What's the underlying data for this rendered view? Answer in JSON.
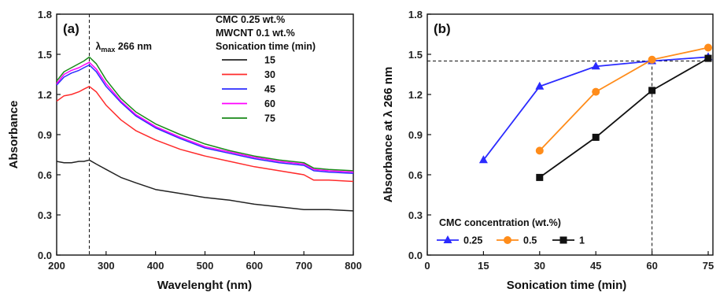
{
  "chart_data": [
    {
      "panel": "(a)",
      "type": "line",
      "xlabel": "Wavelenght (nm)",
      "ylabel": "Absorbance",
      "xlim": [
        200,
        800
      ],
      "ylim": [
        0.0,
        1.8
      ],
      "xticks": [
        "200",
        "300",
        "400",
        "500",
        "600",
        "700",
        "800"
      ],
      "yticks": [
        "0.0",
        "0.3",
        "0.6",
        "0.9",
        "1.2",
        "1.5",
        "1.8"
      ],
      "annotation": {
        "text_prefix": "λ",
        "text_sub": "max",
        "text_suffix": " 266 nm",
        "x": 266
      },
      "legend": {
        "title_lines": [
          "CMC 0.25 wt.%",
          "MWCNT 0.1 wt.%",
          "Sonication time (min)"
        ],
        "position": "top-right"
      },
      "x": [
        200,
        215,
        230,
        245,
        255,
        266,
        280,
        300,
        330,
        360,
        400,
        450,
        500,
        550,
        600,
        650,
        700,
        720,
        750,
        800
      ],
      "series": [
        {
          "name": "15",
          "color": "#222222",
          "values": [
            0.7,
            0.69,
            0.69,
            0.7,
            0.7,
            0.71,
            0.68,
            0.64,
            0.58,
            0.54,
            0.49,
            0.46,
            0.43,
            0.41,
            0.38,
            0.36,
            0.34,
            0.34,
            0.34,
            0.33
          ]
        },
        {
          "name": "30",
          "color": "#ff2b2b",
          "values": [
            1.15,
            1.19,
            1.2,
            1.22,
            1.24,
            1.26,
            1.22,
            1.12,
            1.01,
            0.93,
            0.86,
            0.79,
            0.74,
            0.7,
            0.66,
            0.63,
            0.6,
            0.56,
            0.56,
            0.55
          ]
        },
        {
          "name": "45",
          "color": "#2b2bff",
          "values": [
            1.27,
            1.33,
            1.36,
            1.38,
            1.4,
            1.42,
            1.37,
            1.26,
            1.14,
            1.04,
            0.95,
            0.87,
            0.8,
            0.76,
            0.72,
            0.69,
            0.67,
            0.63,
            0.62,
            0.61
          ]
        },
        {
          "name": "60",
          "color": "#ff00ff",
          "values": [
            1.28,
            1.35,
            1.38,
            1.4,
            1.42,
            1.44,
            1.39,
            1.28,
            1.15,
            1.05,
            0.96,
            0.88,
            0.81,
            0.77,
            0.73,
            0.7,
            0.68,
            0.64,
            0.63,
            0.62
          ]
        },
        {
          "name": "75",
          "color": "#1a8a1a",
          "values": [
            1.3,
            1.37,
            1.4,
            1.43,
            1.45,
            1.48,
            1.43,
            1.31,
            1.17,
            1.07,
            0.98,
            0.9,
            0.83,
            0.78,
            0.74,
            0.71,
            0.69,
            0.65,
            0.64,
            0.63
          ]
        }
      ]
    },
    {
      "panel": "(b)",
      "type": "line",
      "xlabel": "Sonication time (min)",
      "ylabel_prefix": "Absorbance at λ 266 nm",
      "xlim": [
        0,
        75
      ],
      "ylim": [
        0.0,
        1.8
      ],
      "xticks": [
        "0",
        "15",
        "30",
        "45",
        "60",
        "75"
      ],
      "yticks": [
        "0.0",
        "0.3",
        "0.6",
        "0.9",
        "1.2",
        "1.5",
        "1.8"
      ],
      "reference_lines": {
        "y": 1.45,
        "x": 60
      },
      "legend": {
        "title": "CMC concentration (wt.%)",
        "position": "bottom-left"
      },
      "series": [
        {
          "name": "0.25",
          "color": "#2b2bff",
          "marker": "triangle",
          "x": [
            15,
            30,
            45,
            60,
            75
          ],
          "values": [
            0.71,
            1.26,
            1.41,
            1.45,
            1.48
          ]
        },
        {
          "name": "0.5",
          "color": "#ff8c1a",
          "marker": "circle",
          "x": [
            30,
            45,
            60,
            75
          ],
          "values": [
            0.78,
            1.22,
            1.46,
            1.55
          ]
        },
        {
          "name": "1",
          "color": "#111111",
          "marker": "square",
          "x": [
            30,
            45,
            60,
            75
          ],
          "values": [
            0.58,
            0.88,
            1.23,
            1.47
          ]
        }
      ]
    }
  ]
}
